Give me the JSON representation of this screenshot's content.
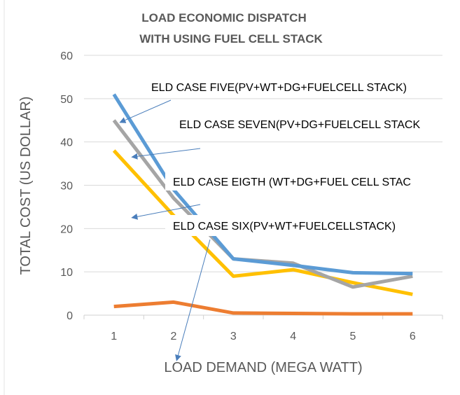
{
  "chart_data": {
    "type": "line",
    "title": [
      "LOAD ECONOMIC DISPATCH",
      "WITH USING FUEL CELL STACK"
    ],
    "xlabel": "LOAD DEMAND (MEGA WATT)",
    "ylabel": "TOTAL COST (US DOLLAR)",
    "categories": [
      "1",
      "2",
      "3",
      "4",
      "5",
      "6"
    ],
    "yticks": [
      "0",
      "10",
      "20",
      "30",
      "40",
      "50",
      "60"
    ],
    "ylim": [
      0,
      60
    ],
    "grid": true,
    "legend": "none",
    "series": [
      {
        "key": "case_six",
        "color": "#ED7D31",
        "values": [
          2.0,
          3.0,
          0.5,
          0.4,
          0.3,
          0.3
        ]
      },
      {
        "key": "case_eigth",
        "color": "#FFC000",
        "values": [
          38.0,
          23.0,
          9.0,
          10.5,
          7.5,
          4.8
        ]
      },
      {
        "key": "case_seven",
        "color": "#A5A5A5",
        "values": [
          45.0,
          27.0,
          13.0,
          12.0,
          6.5,
          9.0
        ]
      },
      {
        "key": "case_five",
        "color": "#5B9BD5",
        "values": [
          51.0,
          29.0,
          13.0,
          11.5,
          9.8,
          9.6
        ]
      }
    ],
    "annotations": [
      {
        "label": "ELD CASE FIVE(PV+WT+DG+FUELCELL STACK)",
        "target_series": "case_five",
        "x": 1.1,
        "y": 44.5
      },
      {
        "label": "ELD CASE SEVEN(PV+DG+FUELCELL STACK",
        "target_series": "case_seven",
        "x": 1.3,
        "y": 36.5
      },
      {
        "label": "ELD CASE EIGTH (WT+DG+FUEL CELL STAC",
        "target_series": "case_eigth",
        "x": 1.3,
        "y": 22.5
      },
      {
        "label": "ELD CASE SIX(PV+WT+FUELCELLSTACK)",
        "target_series": "case_six",
        "x": 2.05,
        "y": -10.5
      }
    ]
  }
}
